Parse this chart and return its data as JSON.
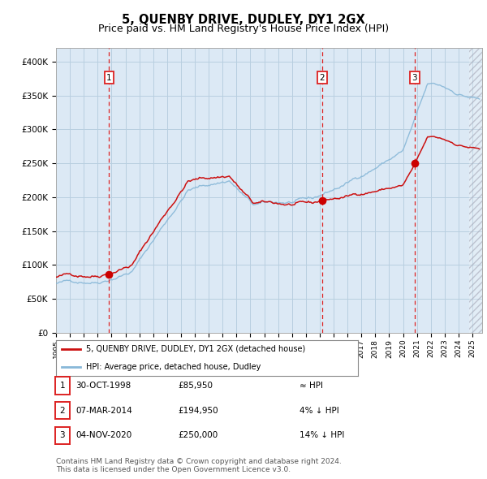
{
  "title": "5, QUENBY DRIVE, DUDLEY, DY1 2GX",
  "subtitle": "Price paid vs. HM Land Registry's House Price Index (HPI)",
  "title_fontsize": 10.5,
  "subtitle_fontsize": 9,
  "bg_color": "#dce9f5",
  "grid_color": "#c8d8e8",
  "ylim": [
    0,
    420000
  ],
  "yticks": [
    0,
    50000,
    100000,
    150000,
    200000,
    250000,
    300000,
    350000,
    400000
  ],
  "ytick_labels": [
    "£0",
    "£50K",
    "£100K",
    "£150K",
    "£200K",
    "£250K",
    "£300K",
    "£350K",
    "£400K"
  ],
  "xlim_start": 1995.0,
  "xlim_end": 2025.7,
  "xtick_years": [
    1995,
    1996,
    1997,
    1998,
    1999,
    2000,
    2001,
    2002,
    2003,
    2004,
    2005,
    2006,
    2007,
    2008,
    2009,
    2010,
    2011,
    2012,
    2013,
    2014,
    2015,
    2016,
    2017,
    2018,
    2019,
    2020,
    2021,
    2022,
    2023,
    2024,
    2025
  ],
  "sale_dates": [
    1998.83,
    2014.18,
    2020.84
  ],
  "sale_prices": [
    85950,
    194950,
    250000
  ],
  "sale_labels": [
    "1",
    "2",
    "3"
  ],
  "vline_color": "#dd2222",
  "dot_color": "#cc0000",
  "hpi_line_color": "#88b8d8",
  "price_line_color": "#cc1111",
  "legend_label_price": "5, QUENBY DRIVE, DUDLEY, DY1 2GX (detached house)",
  "legend_label_hpi": "HPI: Average price, detached house, Dudley",
  "table_rows": [
    {
      "num": "1",
      "date": "30-OCT-1998",
      "price": "£85,950",
      "vs": "≈ HPI"
    },
    {
      "num": "2",
      "date": "07-MAR-2014",
      "price": "£194,950",
      "vs": "4% ↓ HPI"
    },
    {
      "num": "3",
      "date": "04-NOV-2020",
      "price": "£250,000",
      "vs": "14% ↓ HPI"
    }
  ],
  "footnote": "Contains HM Land Registry data © Crown copyright and database right 2024.\nThis data is licensed under the Open Government Licence v3.0.",
  "footnote_fontsize": 6.5
}
